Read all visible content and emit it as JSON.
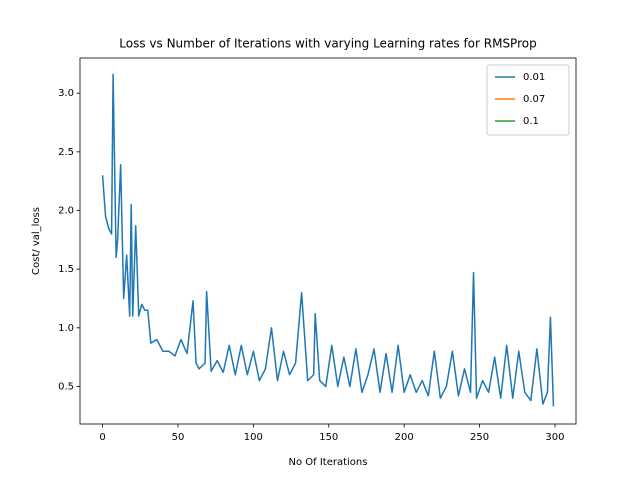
{
  "chart_data": {
    "type": "line",
    "title": "Loss vs Number of Iterations with varying Learning rates for RMSProp",
    "xlabel": "No Of Iterations",
    "ylabel": "Cost/ val_loss",
    "x": [
      0,
      2,
      4,
      6,
      7,
      9,
      10,
      12,
      14,
      16,
      18,
      19,
      20,
      22,
      24,
      26,
      28,
      30,
      32,
      36,
      40,
      44,
      48,
      52,
      56,
      60,
      62,
      64,
      68,
      69,
      72,
      76,
      80,
      84,
      88,
      92,
      96,
      100,
      104,
      108,
      112,
      116,
      120,
      124,
      128,
      132,
      136,
      140,
      141,
      144,
      148,
      152,
      156,
      160,
      164,
      168,
      172,
      176,
      180,
      184,
      188,
      192,
      196,
      200,
      204,
      208,
      212,
      216,
      220,
      224,
      228,
      232,
      236,
      240,
      244,
      246,
      248,
      252,
      256,
      260,
      264,
      268,
      272,
      276,
      280,
      284,
      288,
      292,
      295,
      297,
      299
    ],
    "series": [
      {
        "name": "0.01",
        "color": "#1f77b4",
        "values": [
          2.3,
          1.95,
          1.85,
          1.8,
          3.16,
          1.6,
          1.75,
          2.39,
          1.25,
          1.62,
          1.1,
          2.05,
          1.1,
          1.87,
          1.1,
          1.2,
          1.15,
          1.15,
          0.87,
          0.9,
          0.8,
          0.8,
          0.76,
          0.9,
          0.78,
          1.23,
          0.7,
          0.65,
          0.7,
          1.31,
          0.63,
          0.72,
          0.62,
          0.85,
          0.6,
          0.85,
          0.6,
          0.8,
          0.55,
          0.65,
          1.0,
          0.55,
          0.8,
          0.6,
          0.7,
          1.3,
          0.55,
          0.6,
          1.12,
          0.55,
          0.5,
          0.85,
          0.5,
          0.75,
          0.5,
          0.82,
          0.45,
          0.6,
          0.82,
          0.45,
          0.78,
          0.45,
          0.85,
          0.45,
          0.6,
          0.45,
          0.55,
          0.42,
          0.8,
          0.4,
          0.5,
          0.8,
          0.42,
          0.65,
          0.45,
          1.47,
          0.4,
          0.55,
          0.45,
          0.75,
          0.4,
          0.85,
          0.4,
          0.8,
          0.45,
          0.38,
          0.82,
          0.35,
          0.45,
          1.09,
          0.33
        ]
      },
      {
        "name": "0.07",
        "color": "#ff7f0e",
        "values": [
          null,
          null,
          null,
          null,
          null,
          null,
          null,
          null,
          null,
          null,
          null,
          null,
          null,
          null,
          null,
          null,
          null,
          null,
          null,
          null,
          null,
          null,
          null,
          null,
          null,
          null,
          null,
          null,
          null,
          null,
          null,
          null,
          null,
          null,
          null,
          null,
          null,
          null,
          null,
          null,
          null,
          null,
          null,
          null,
          null,
          null,
          null,
          null,
          null,
          null,
          null,
          null,
          null,
          null,
          null,
          null,
          null,
          null,
          null,
          null,
          null,
          null,
          null,
          null,
          null,
          null,
          null,
          null,
          null,
          null,
          null,
          null,
          null,
          null,
          null,
          null,
          null,
          null,
          null,
          null,
          null,
          null,
          null,
          null,
          null,
          null,
          null,
          null,
          null,
          null,
          null
        ]
      },
      {
        "name": "0.1",
        "color": "#2ca02c",
        "values": [
          null,
          null,
          null,
          null,
          null,
          null,
          null,
          null,
          null,
          null,
          null,
          null,
          null,
          null,
          null,
          null,
          null,
          null,
          null,
          null,
          null,
          null,
          null,
          null,
          null,
          null,
          null,
          null,
          null,
          null,
          null,
          null,
          null,
          null,
          null,
          null,
          null,
          null,
          null,
          null,
          null,
          null,
          null,
          null,
          null,
          null,
          null,
          null,
          null,
          null,
          null,
          null,
          null,
          null,
          null,
          null,
          null,
          null,
          null,
          null,
          null,
          null,
          null,
          null,
          null,
          null,
          null,
          null,
          null,
          null,
          null,
          null,
          null,
          null,
          null,
          null,
          null,
          null,
          null,
          null,
          null,
          null,
          null,
          null,
          null,
          null,
          null,
          null,
          null,
          null,
          null
        ]
      }
    ],
    "xlim": [
      -14.95,
      313.95
    ],
    "ylim": [
      0.18,
      3.3
    ],
    "xticks": [
      0,
      50,
      100,
      150,
      200,
      250,
      300
    ],
    "yticks": [
      0.5,
      {
        "value": 1,
        "label": "1.0"
      },
      1.5,
      {
        "value": 2,
        "label": "2.0"
      },
      2.5,
      {
        "value": 3,
        "label": "3.0"
      }
    ],
    "grid": false,
    "legend": "upper right"
  }
}
